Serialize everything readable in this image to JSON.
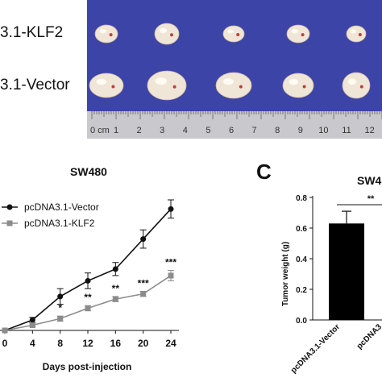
{
  "photo": {
    "row_labels": [
      "3.1-KLF2",
      "3.1-Vector"
    ],
    "ruler_text": "0 cm",
    "ruler_numbers": [
      "1",
      "2",
      "3",
      "4",
      "5",
      "6",
      "7",
      "8",
      "9",
      "10",
      "11",
      "12"
    ],
    "colors": {
      "background": "#3d44a8",
      "ruler": "#c9c8cc",
      "tumor": "#f0e6d8"
    }
  },
  "chart_data": [
    {
      "type": "line",
      "title": "SW480",
      "xlabel": "Days post-injection",
      "ylabel": "",
      "x": [
        0,
        4,
        8,
        12,
        16,
        20,
        24
      ],
      "xlim": [
        0,
        24
      ],
      "ylim": [
        0,
        1.0
      ],
      "legend_position": "top-left",
      "series": [
        {
          "name": "pcDNA3.1-Vector",
          "color": "#111111",
          "marker": "circle",
          "values": [
            0.0,
            0.08,
            0.26,
            0.38,
            0.47,
            0.7,
            0.93
          ],
          "errors": [
            0.0,
            0.02,
            0.06,
            0.06,
            0.05,
            0.07,
            0.07
          ]
        },
        {
          "name": "pcDNA3.1-KLF2",
          "color": "#8c8c8c",
          "marker": "square",
          "values": [
            0.0,
            0.04,
            0.09,
            0.17,
            0.24,
            0.28,
            0.42
          ],
          "errors": [
            0.0,
            0.01,
            0.02,
            0.02,
            0.02,
            0.02,
            0.04
          ]
        }
      ],
      "annotations": [
        {
          "x": 8,
          "text": "*"
        },
        {
          "x": 12,
          "text": "**"
        },
        {
          "x": 16,
          "text": "**"
        },
        {
          "x": 20,
          "text": "***"
        },
        {
          "x": 24,
          "text": "***"
        }
      ]
    },
    {
      "type": "bar",
      "panel_label": "C",
      "title": "SW4",
      "ylabel": "Tumor weight (g)",
      "categories": [
        "pcDNA3.1-Vector",
        "pcDNA3"
      ],
      "values": [
        0.63,
        null
      ],
      "errors": [
        0.08,
        null
      ],
      "ylim": [
        0,
        0.8
      ],
      "yticks": [
        "0.0",
        "0.2",
        "0.4",
        "0.6",
        "0.8"
      ],
      "significance": "**",
      "colors": {
        "bar": "#000000"
      }
    }
  ]
}
